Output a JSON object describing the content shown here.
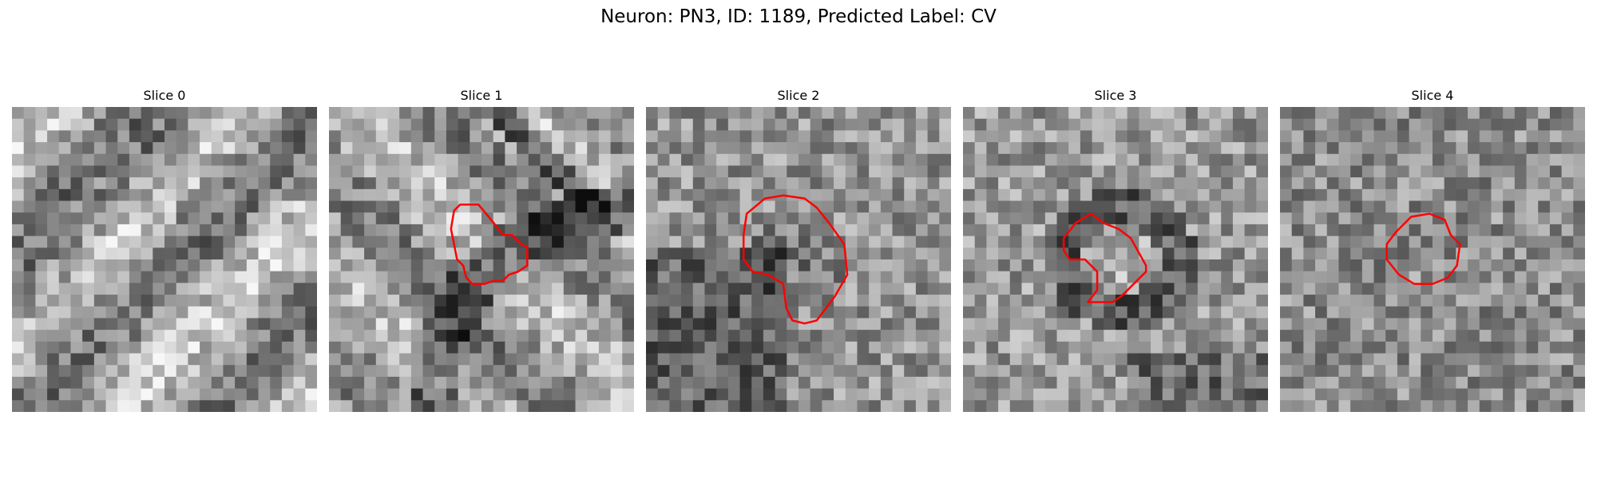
{
  "figure": {
    "title": "Neuron: PN3, ID: 1189, Predicted Label: CV"
  },
  "slices": [
    {
      "title": "Slice 0",
      "has_contour": false,
      "pattern": "diagonal-bands",
      "seed": 11
    },
    {
      "title": "Slice 1",
      "has_contour": true,
      "pattern": "diagonal-bands-dark-arc",
      "seed": 23,
      "contour": [
        [
          0.43,
          0.32
        ],
        [
          0.49,
          0.32
        ],
        [
          0.54,
          0.38
        ],
        [
          0.57,
          0.42
        ],
        [
          0.6,
          0.42
        ],
        [
          0.63,
          0.45
        ],
        [
          0.65,
          0.46
        ],
        [
          0.65,
          0.52
        ],
        [
          0.62,
          0.54
        ],
        [
          0.59,
          0.55
        ],
        [
          0.57,
          0.57
        ],
        [
          0.54,
          0.57
        ],
        [
          0.51,
          0.58
        ],
        [
          0.47,
          0.58
        ],
        [
          0.45,
          0.56
        ],
        [
          0.44,
          0.52
        ],
        [
          0.42,
          0.5
        ],
        [
          0.41,
          0.45
        ],
        [
          0.4,
          0.4
        ],
        [
          0.41,
          0.34
        ]
      ]
    },
    {
      "title": "Slice 2",
      "has_contour": true,
      "pattern": "dark-bottom-left",
      "seed": 37,
      "contour": [
        [
          0.33,
          0.35
        ],
        [
          0.39,
          0.3
        ],
        [
          0.45,
          0.29
        ],
        [
          0.52,
          0.3
        ],
        [
          0.56,
          0.33
        ],
        [
          0.6,
          0.38
        ],
        [
          0.65,
          0.45
        ],
        [
          0.66,
          0.55
        ],
        [
          0.62,
          0.62
        ],
        [
          0.56,
          0.7
        ],
        [
          0.52,
          0.71
        ],
        [
          0.48,
          0.7
        ],
        [
          0.46,
          0.66
        ],
        [
          0.45,
          0.58
        ],
        [
          0.4,
          0.55
        ],
        [
          0.35,
          0.54
        ],
        [
          0.32,
          0.5
        ],
        [
          0.32,
          0.42
        ]
      ]
    },
    {
      "title": "Slice 3",
      "has_contour": true,
      "pattern": "dark-ring",
      "seed": 41,
      "contour": [
        [
          0.33,
          0.43
        ],
        [
          0.37,
          0.38
        ],
        [
          0.42,
          0.35
        ],
        [
          0.46,
          0.38
        ],
        [
          0.51,
          0.4
        ],
        [
          0.55,
          0.43
        ],
        [
          0.6,
          0.52
        ],
        [
          0.6,
          0.54
        ],
        [
          0.57,
          0.57
        ],
        [
          0.55,
          0.59
        ],
        [
          0.52,
          0.62
        ],
        [
          0.49,
          0.64
        ],
        [
          0.45,
          0.64
        ],
        [
          0.41,
          0.64
        ],
        [
          0.44,
          0.6
        ],
        [
          0.44,
          0.54
        ],
        [
          0.4,
          0.5
        ],
        [
          0.35,
          0.5
        ],
        [
          0.33,
          0.47
        ]
      ]
    },
    {
      "title": "Slice 4",
      "has_contour": true,
      "pattern": "uniform-noise",
      "seed": 53,
      "contour": [
        [
          0.4,
          0.39
        ],
        [
          0.43,
          0.36
        ],
        [
          0.49,
          0.35
        ],
        [
          0.54,
          0.37
        ],
        [
          0.56,
          0.42
        ],
        [
          0.59,
          0.45
        ],
        [
          0.58,
          0.52
        ],
        [
          0.55,
          0.56
        ],
        [
          0.5,
          0.58
        ],
        [
          0.44,
          0.58
        ],
        [
          0.39,
          0.55
        ],
        [
          0.35,
          0.5
        ],
        [
          0.35,
          0.45
        ],
        [
          0.38,
          0.41
        ]
      ]
    }
  ],
  "style": {
    "contour_color": "#ff0000",
    "grid_cells": 26
  }
}
